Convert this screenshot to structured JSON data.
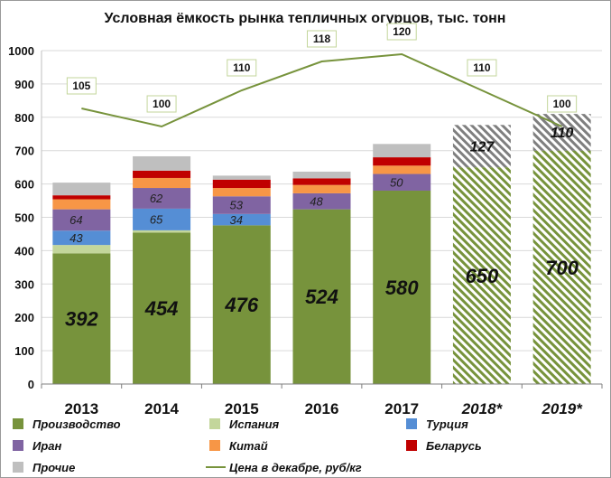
{
  "chart_data": {
    "type": "bar",
    "stacked": true,
    "title": "Условная ёмкость рынка тепличных огурцов, тыс. тонн",
    "categories": [
      "2013",
      "2014",
      "2015",
      "2016",
      "2017",
      "2018*",
      "2019*"
    ],
    "ylim": [
      0,
      1000
    ],
    "yticks": [
      "0",
      "100",
      "200",
      "300",
      "400",
      "500",
      "600",
      "700",
      "800",
      "900",
      "1000"
    ],
    "grid": true,
    "legend_position": "bottom",
    "series": [
      {
        "name": "Производство",
        "color": "#77933c",
        "values": [
          392,
          454,
          476,
          524,
          580,
          650,
          700
        ],
        "labels": [
          "392",
          "454",
          "476",
          "524",
          "580",
          "650",
          "700"
        ]
      },
      {
        "name": "Испания",
        "color": "#c3d69b",
        "values": [
          25,
          7,
          0,
          0,
          0,
          null,
          null
        ],
        "labels": [
          "",
          "",
          "",
          "",
          "",
          "",
          ""
        ]
      },
      {
        "name": "Турция",
        "color": "#558ed5",
        "values": [
          43,
          65,
          34,
          0,
          0,
          null,
          null
        ],
        "labels": [
          "43",
          "65",
          "34",
          "",
          "",
          "",
          ""
        ]
      },
      {
        "name": "Иран",
        "color": "#8064a2",
        "values": [
          64,
          62,
          53,
          48,
          50,
          null,
          null
        ],
        "labels": [
          "64",
          "62",
          "53",
          "48",
          "50",
          "",
          ""
        ]
      },
      {
        "name": "Китай",
        "color": "#f79646",
        "values": [
          30,
          30,
          25,
          25,
          25,
          null,
          null
        ],
        "labels": [
          "",
          "",
          "",
          "",
          "",
          "",
          ""
        ]
      },
      {
        "name": "Беларусь",
        "color": "#c00000",
        "values": [
          12,
          22,
          25,
          20,
          25,
          null,
          null
        ],
        "labels": [
          "",
          "",
          "",
          "",
          "",
          "",
          ""
        ]
      },
      {
        "name": "Прочие",
        "color": "#bfbfbf",
        "values": [
          38,
          43,
          12,
          20,
          40,
          null,
          null
        ],
        "labels": [
          "",
          "",
          "",
          "",
          "",
          "",
          ""
        ]
      },
      {
        "name": "",
        "pattern": "hatch-grey",
        "values": [
          null,
          null,
          null,
          null,
          null,
          127,
          110
        ],
        "labels": [
          "",
          "",
          "",
          "",
          "",
          "127",
          "110"
        ]
      }
    ],
    "line_series": {
      "name": "Цена в декабре, руб/кг",
      "color": "#77933c",
      "values": [
        105,
        100,
        110,
        118,
        120,
        110,
        100
      ],
      "labels": [
        "105",
        "100",
        "110",
        "118",
        "120",
        "110",
        "100"
      ]
    }
  }
}
